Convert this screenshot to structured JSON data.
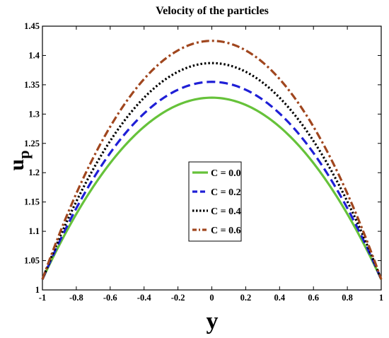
{
  "chart_data": {
    "type": "line",
    "title": "Velocity of the particles",
    "xlabel": "y",
    "ylabel": "u",
    "ylabel_sub": "p",
    "xlim": [
      -1,
      1
    ],
    "ylim": [
      1,
      1.45
    ],
    "xticks": [
      "-1",
      "-0.8",
      "-0.6",
      "-0.4",
      "-0.2",
      "0",
      "0.2",
      "0.4",
      "0.6",
      "0.8",
      "1"
    ],
    "yticks": [
      "1",
      "1.05",
      "1.1",
      "1.15",
      "1.2",
      "1.25",
      "1.3",
      "1.35",
      "1.4",
      "1.45"
    ],
    "grid": false,
    "legend_position": "center-right",
    "series": [
      {
        "name": "C = 0.0",
        "color": "#66c23a",
        "style": "solid",
        "x": [
          -1,
          0,
          1
        ],
        "y": [
          1.018,
          1.328,
          1.018
        ]
      },
      {
        "name": "C = 0.2",
        "color": "#1f1fd6",
        "style": "dashed",
        "x": [
          -1,
          0,
          1
        ],
        "y": [
          1.018,
          1.355,
          1.018
        ]
      },
      {
        "name": "C = 0.4",
        "color": "#000000",
        "style": "dotted",
        "x": [
          -1,
          0,
          1
        ],
        "y": [
          1.018,
          1.387,
          1.018
        ]
      },
      {
        "name": "C = 0.6",
        "color": "#a0461e",
        "style": "dash-dot",
        "x": [
          -1,
          0,
          1
        ],
        "y": [
          1.018,
          1.425,
          1.018
        ]
      }
    ]
  }
}
